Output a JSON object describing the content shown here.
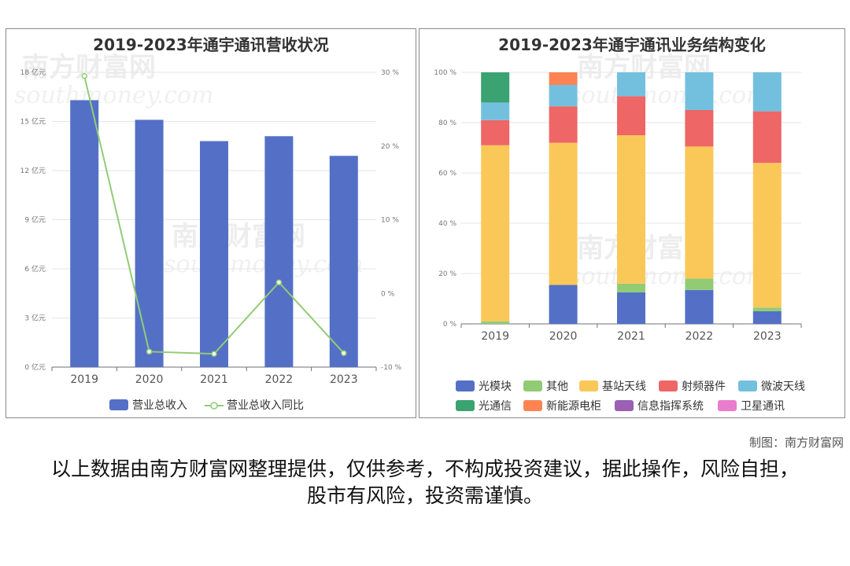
{
  "charts": {
    "left_title": "2019-2023年通宇通讯营收状况",
    "right_title": "2019-2023年通宇通讯业务结构变化"
  },
  "chart_data": [
    {
      "type": "bar",
      "title": "2019-2023年通宇通讯营收状况",
      "categories": [
        "2019",
        "2020",
        "2021",
        "2022",
        "2023"
      ],
      "y_left": {
        "ticks": [
          "0 亿元",
          "3 亿元",
          "6 亿元",
          "9 亿元",
          "12 亿元",
          "15 亿元",
          "18 亿元"
        ],
        "ylim": [
          0,
          18
        ]
      },
      "y_right": {
        "ticks": [
          "-10 %",
          "0 %",
          "10 %",
          "20 %",
          "30 %"
        ],
        "ylim": [
          -10,
          30
        ]
      },
      "series": [
        {
          "name": "营业总收入",
          "kind": "bar",
          "axis": "left",
          "color": "#5470c6",
          "values": [
            16.3,
            15.1,
            13.8,
            14.1,
            12.9
          ]
        },
        {
          "name": "营业总收入同比",
          "kind": "line",
          "axis": "right",
          "color": "#91cc75",
          "values": [
            29.5,
            -7.9,
            -8.2,
            1.5,
            -8.1
          ]
        }
      ]
    },
    {
      "type": "bar",
      "stacked": true,
      "title": "2019-2023年通宇通讯业务结构变化",
      "categories": [
        "2019",
        "2020",
        "2021",
        "2022",
        "2023"
      ],
      "y_ticks": [
        "0 %",
        "20 %",
        "40 %",
        "60 %",
        "80 %",
        "100 %"
      ],
      "ylim": [
        0,
        100
      ],
      "series": [
        {
          "name": "光模块",
          "color": "#5470c6",
          "values": [
            0,
            15.5,
            12.5,
            13.5,
            5
          ]
        },
        {
          "name": "其他",
          "color": "#91cc75",
          "values": [
            1,
            0,
            3.5,
            4.5,
            1.5
          ]
        },
        {
          "name": "基站天线",
          "color": "#fac858",
          "values": [
            70,
            56.5,
            59,
            52.5,
            57.5
          ]
        },
        {
          "name": "射频器件",
          "color": "#ee6666",
          "values": [
            10,
            14.5,
            15.5,
            14.5,
            20.5
          ]
        },
        {
          "name": "微波天线",
          "color": "#73c0de",
          "values": [
            7,
            8.5,
            9.5,
            15,
            15.5
          ]
        },
        {
          "name": "光通信",
          "color": "#3ba272",
          "values": [
            12,
            0,
            0,
            0,
            0
          ]
        },
        {
          "name": "新能源电柜",
          "color": "#fc8452",
          "values": [
            0,
            5,
            0,
            0,
            0
          ]
        },
        {
          "name": "信息指挥系统",
          "color": "#9a60b4",
          "values": [
            0,
            0,
            0,
            0,
            0
          ]
        },
        {
          "name": "卫星通讯",
          "color": "#ea7ccc",
          "values": [
            0,
            0,
            0,
            0,
            0
          ]
        }
      ]
    }
  ],
  "footer": {
    "credit": "制图：南方财富网",
    "disclaimer": "以上数据由南方财富网整理提供，仅供参考，不构成投资建议，据此操作，风险自担，股市有风险，投资需谨慎。"
  },
  "watermark": {
    "brand": "南方财富网",
    "url": "southmoney.com"
  }
}
